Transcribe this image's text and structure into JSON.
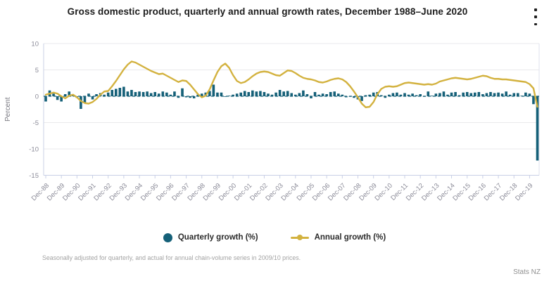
{
  "header": {
    "title": "Gross domestic product, quarterly and annual growth rates, December 1988–June 2020"
  },
  "y_axis": {
    "label": "Percent",
    "ticks": [
      10,
      5,
      0,
      -5,
      -10,
      -15
    ]
  },
  "x_axis": {
    "tick_labels": [
      "Dec-88",
      "Dec-89",
      "Dec-90",
      "Dec-91",
      "Dec-92",
      "Dec-93",
      "Dec-94",
      "Dec-95",
      "Dec-96",
      "Dec-97",
      "Dec-98",
      "Dec-99",
      "Dec-00",
      "Dec-01",
      "Dec-02",
      "Dec-03",
      "Dec-04",
      "Dec-05",
      "Dec-06",
      "Dec-07",
      "Dec-08",
      "Dec-09",
      "Dec-10",
      "Dec-11",
      "Dec-12",
      "Dec-13",
      "Dec-14",
      "Dec-15",
      "Dec-16",
      "Dec-17",
      "Dec-18",
      "Dec-19"
    ]
  },
  "chart_data": {
    "type": "combo",
    "title": "Gross domestic product, quarterly and annual growth rates, December 1988–June 2020",
    "frequency": "quarterly",
    "start": "Dec-1988",
    "end": "Jun-2020",
    "ylabel": "Percent",
    "ylim": [
      -15,
      10
    ],
    "grid": true,
    "legend_position": "bottom",
    "series": [
      {
        "name": "Quarterly growth (%)",
        "type": "bar",
        "color": "#156078",
        "values": [
          -1.0,
          1.1,
          0.5,
          -0.7,
          -1.0,
          0.4,
          0.9,
          0.2,
          -0.3,
          -2.4,
          -1.2,
          0.5,
          -0.6,
          0.4,
          0.6,
          0.3,
          0.7,
          1.2,
          1.4,
          1.6,
          1.8,
          0.9,
          1.2,
          0.8,
          0.9,
          0.8,
          0.9,
          0.6,
          0.8,
          0.5,
          0.9,
          0.7,
          0.3,
          0.9,
          -0.3,
          1.5,
          -0.2,
          -0.3,
          -0.4,
          0.3,
          0.5,
          0.7,
          1.0,
          2.2,
          0.7,
          0.7,
          -0.1,
          0.1,
          0.3,
          0.5,
          0.7,
          1.0,
          0.8,
          1.1,
          0.9,
          1.0,
          0.8,
          0.5,
          0.3,
          0.7,
          1.2,
          0.9,
          1.0,
          0.6,
          0.3,
          0.6,
          1.1,
          0.4,
          -0.4,
          0.8,
          0.3,
          0.5,
          0.4,
          0.8,
          0.9,
          0.5,
          0.3,
          -0.2,
          -0.1,
          -0.3,
          -0.6,
          -0.9,
          0.2,
          0.3,
          0.7,
          0.8,
          0.2,
          -0.3,
          0.3,
          0.6,
          0.7,
          0.3,
          0.6,
          0.3,
          0.5,
          0.2,
          0.4,
          -0.1,
          0.9,
          0.1,
          0.5,
          0.6,
          0.9,
          0.3,
          0.7,
          0.8,
          0.2,
          0.7,
          0.8,
          0.6,
          0.7,
          0.8,
          0.4,
          0.6,
          0.8,
          0.6,
          0.7,
          0.5,
          0.9,
          0.3,
          0.6,
          0.6,
          0.1,
          0.7,
          0.5,
          -1.5,
          -12.2
        ]
      },
      {
        "name": "Annual growth (%)",
        "type": "line",
        "color": "#d3b23f",
        "values": [
          0.3,
          0.5,
          0.7,
          0.5,
          0.0,
          -0.4,
          0.1,
          0.3,
          -0.2,
          -0.9,
          -1.3,
          -1.4,
          -1.1,
          -0.5,
          0.3,
          0.9,
          1.0,
          1.9,
          2.9,
          4.0,
          5.1,
          6.0,
          6.6,
          6.4,
          6.0,
          5.6,
          5.2,
          4.8,
          4.5,
          4.2,
          4.3,
          3.9,
          3.5,
          3.1,
          2.7,
          3.0,
          2.9,
          2.2,
          1.3,
          0.4,
          -0.2,
          0.1,
          1.3,
          3.0,
          4.6,
          5.7,
          6.2,
          5.4,
          4.0,
          2.9,
          2.5,
          2.7,
          3.2,
          3.8,
          4.3,
          4.6,
          4.7,
          4.6,
          4.3,
          4.0,
          3.9,
          4.4,
          4.9,
          4.8,
          4.4,
          3.9,
          3.5,
          3.3,
          3.2,
          3.0,
          2.7,
          2.6,
          2.8,
          3.1,
          3.3,
          3.4,
          3.2,
          2.7,
          1.9,
          0.9,
          -0.2,
          -1.4,
          -2.1,
          -2.0,
          -1.1,
          0.4,
          1.4,
          1.8,
          1.9,
          1.8,
          1.9,
          2.2,
          2.5,
          2.6,
          2.5,
          2.4,
          2.3,
          2.2,
          2.3,
          2.2,
          2.4,
          2.8,
          3.0,
          3.2,
          3.4,
          3.5,
          3.4,
          3.3,
          3.2,
          3.3,
          3.5,
          3.7,
          3.9,
          3.8,
          3.5,
          3.3,
          3.3,
          3.2,
          3.2,
          3.1,
          3.0,
          2.9,
          2.8,
          2.7,
          2.3,
          1.5,
          -2.0
        ]
      }
    ]
  },
  "legend": {
    "items": [
      {
        "label": "Quarterly growth (%)",
        "marker": "circle",
        "color": "#156078"
      },
      {
        "label": "Annual growth (%)",
        "marker": "line-dot",
        "color": "#d3b23f"
      }
    ]
  },
  "footnote": "Seasonally adjusted for quarterly, and actual for annual chain-volume series in 2009/10 prices.",
  "source": "Stats NZ",
  "colors": {
    "bar": "#156078",
    "line": "#d3b23f",
    "grid": "#e9e9ec",
    "axis": "#c9d0e6",
    "axis_text": "#8b8b98",
    "title_text": "#1c1c1c"
  }
}
